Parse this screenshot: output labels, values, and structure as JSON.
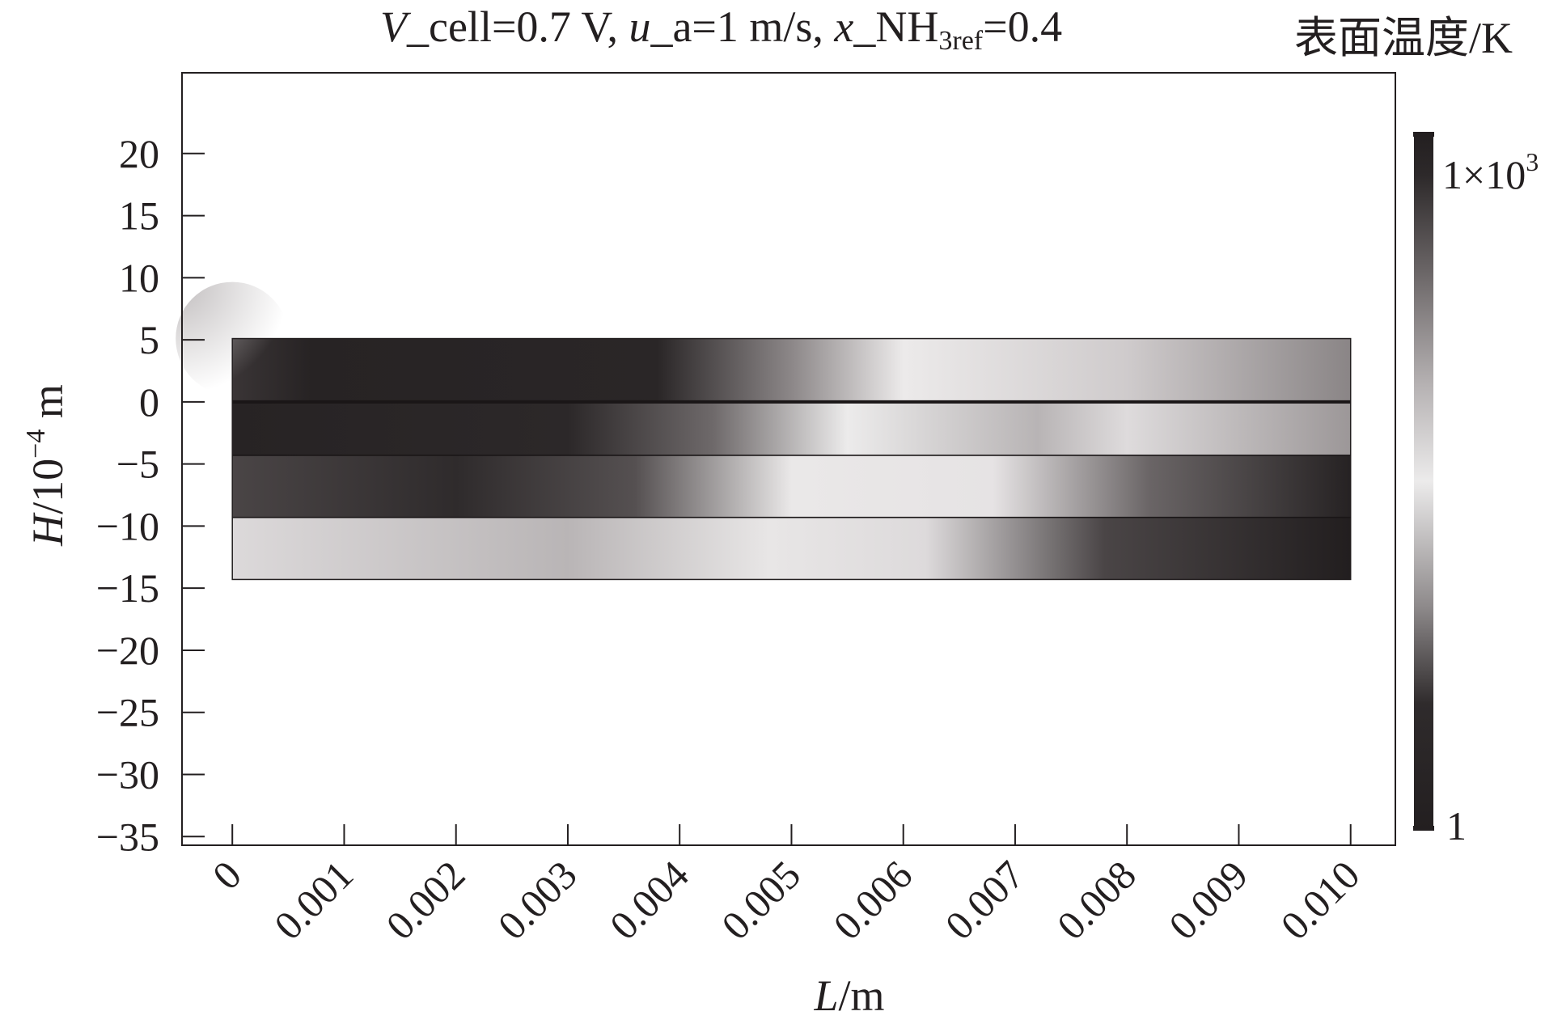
{
  "chart_data": {
    "type": "heatmap",
    "title_parts": {
      "v_symbol": "V",
      "v_text": "_cell=0.7 V,",
      "u_symbol": "u",
      "u_text": "_a=1 m/s,",
      "x_symbol": "x",
      "x_text": "_NH",
      "x_sub": "3ref",
      "x_value": "=0.4"
    },
    "colorbar": {
      "title": "表面温度/K",
      "max_label_base": "1×10",
      "max_label_exp": "3",
      "min_label": "1",
      "min": 1,
      "max": 1000
    },
    "xlabel": {
      "symbol": "L",
      "unit": "/m"
    },
    "ylabel": {
      "symbol": "H",
      "unit_base": "/10",
      "unit_exp": "−4",
      "unit_tail": " m"
    },
    "xlim": [
      -0.00045,
      0.0104
    ],
    "ylim": [
      -35.7,
      26.5
    ],
    "x_ticks": [
      0,
      0.001,
      0.002,
      0.003,
      0.004,
      0.005,
      0.006,
      0.007,
      0.008,
      0.009,
      0.01
    ],
    "x_tick_labels": [
      "0",
      "0.001",
      "0.002",
      "0.003",
      "0.004",
      "0.005",
      "0.006",
      "0.007",
      "0.008",
      "0.009",
      "0.010"
    ],
    "y_ticks": [
      20,
      15,
      10,
      5,
      0,
      -5,
      -10,
      -15,
      -20,
      -25,
      -30,
      -35
    ],
    "y_tick_labels": [
      "20",
      "15",
      "10",
      "5",
      "0",
      "−5",
      "−10",
      "−15",
      "−20",
      "−25",
      "−30",
      "−35"
    ],
    "domain": {
      "x": [
        0,
        0.01
      ],
      "y": [
        -14.3,
        5.1
      ]
    },
    "layer_boundaries_y": [
      0,
      -4.3,
      -9.3
    ],
    "colors": {
      "dark": "#231f20",
      "light": "#f2eff0"
    }
  }
}
